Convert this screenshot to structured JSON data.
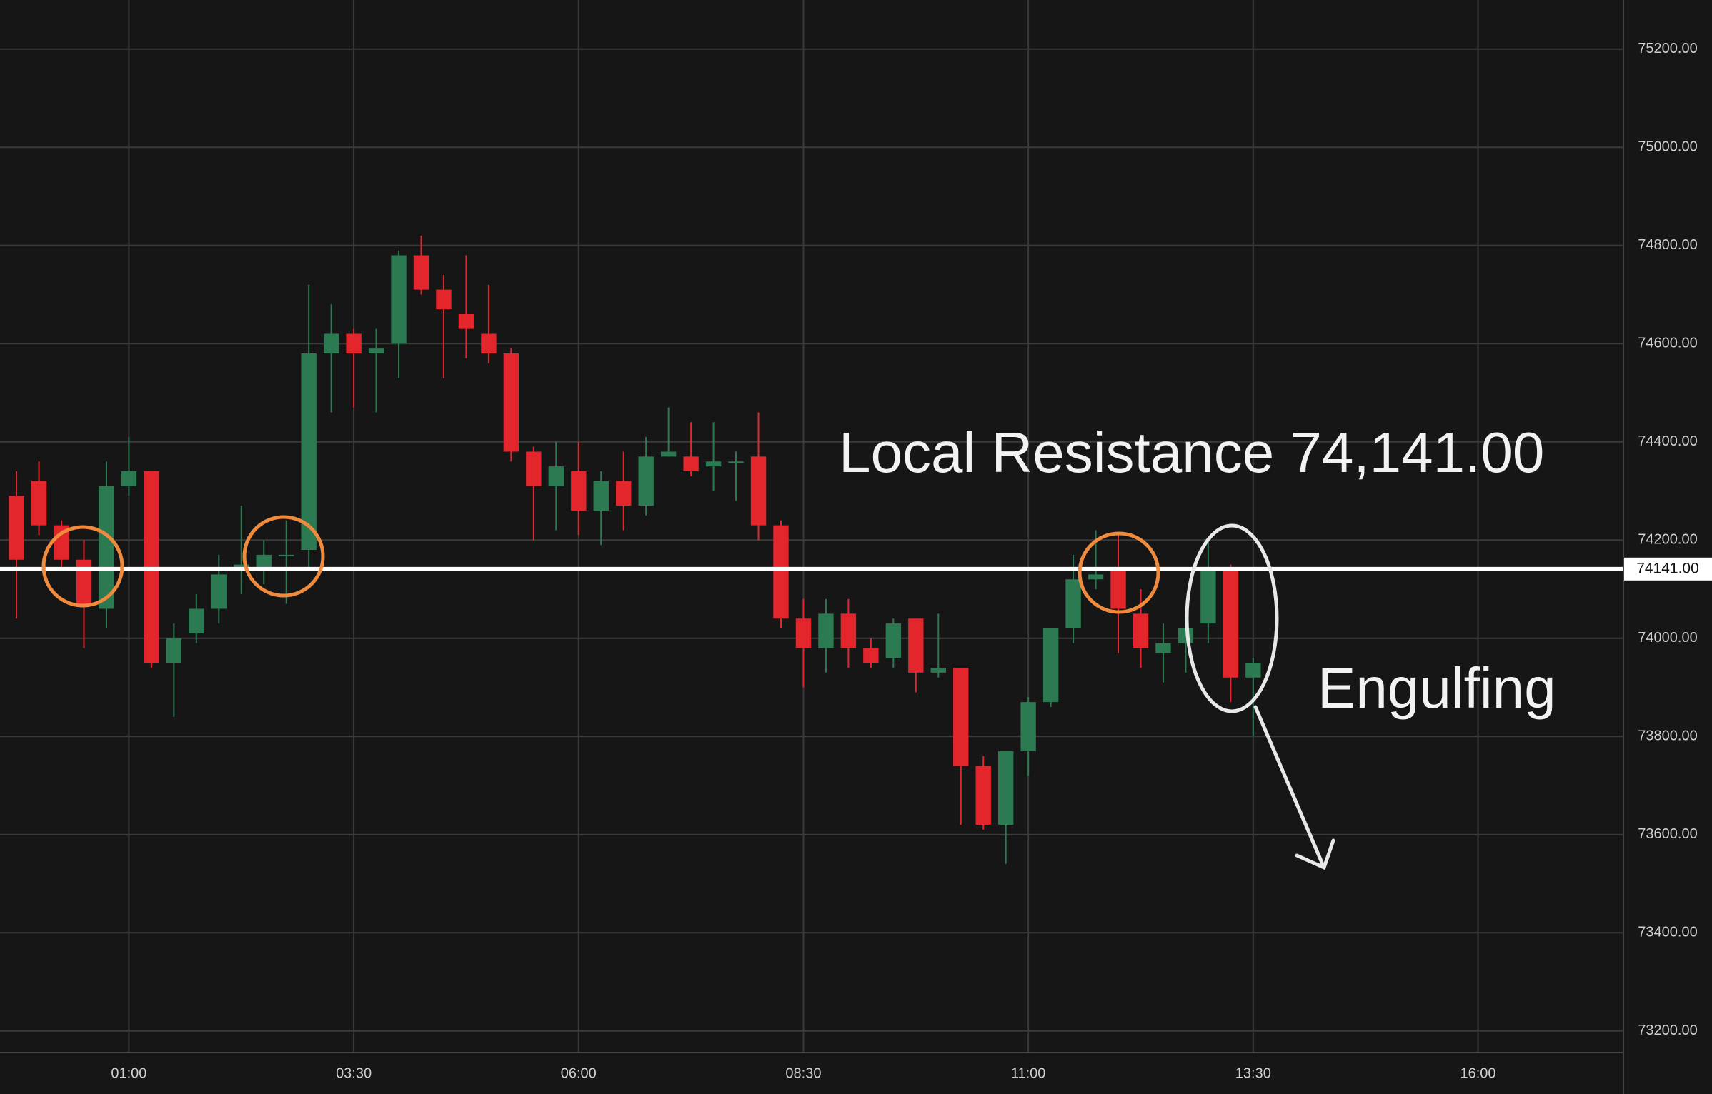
{
  "chart_data": {
    "type": "candlestick",
    "x": [
      "23:45",
      "00:00",
      "00:15",
      "00:30",
      "00:45",
      "01:00",
      "01:15",
      "01:30",
      "01:45",
      "02:00",
      "02:15",
      "02:30",
      "02:45",
      "03:00",
      "03:15",
      "03:30",
      "03:45",
      "04:00",
      "04:15",
      "04:30",
      "04:45",
      "05:00",
      "05:15",
      "05:30",
      "05:45",
      "06:00",
      "06:15",
      "06:30",
      "06:45",
      "07:00",
      "07:15",
      "07:30",
      "07:45",
      "08:00",
      "08:15",
      "08:30",
      "08:45",
      "09:00",
      "09:15",
      "09:30",
      "09:45",
      "10:00",
      "10:15",
      "10:30",
      "10:45",
      "11:00",
      "11:15",
      "11:30",
      "11:45",
      "12:00",
      "12:15",
      "12:30",
      "12:45",
      "13:00",
      "13:15",
      "13:30"
    ],
    "open": [
      74290,
      74320,
      74230,
      74160,
      74060,
      74310,
      74340,
      73950,
      74010,
      74060,
      74140,
      74140,
      74170,
      74180,
      74580,
      74620,
      74580,
      74600,
      74780,
      74710,
      74660,
      74620,
      74580,
      74380,
      74310,
      74340,
      74260,
      74320,
      74270,
      74370,
      74370,
      74350,
      74360,
      74370,
      74230,
      74040,
      73980,
      74050,
      73980,
      73960,
      74040,
      73930,
      73940,
      73740,
      73620,
      73770,
      73870,
      74020,
      74120,
      74140,
      74050,
      73970,
      73990,
      74030,
      74140,
      73920
    ],
    "high": [
      74340,
      74360,
      74240,
      74200,
      74360,
      74410,
      74340,
      74030,
      74090,
      74170,
      74270,
      74200,
      74240,
      74720,
      74680,
      74630,
      74630,
      74790,
      74820,
      74740,
      74780,
      74720,
      74590,
      74390,
      74400,
      74400,
      74340,
      74380,
      74410,
      74470,
      74440,
      74440,
      74380,
      74460,
      74240,
      74080,
      74080,
      74080,
      74000,
      74040,
      74040,
      74050,
      73940,
      73760,
      73770,
      73880,
      74020,
      74170,
      74220,
      74210,
      74100,
      74030,
      74040,
      74200,
      74150,
      73960
    ],
    "low": [
      74040,
      74210,
      74140,
      73980,
      74020,
      74290,
      73940,
      73840,
      73990,
      74030,
      74090,
      74110,
      74070,
      74140,
      74460,
      74470,
      74460,
      74530,
      74700,
      74530,
      74570,
      74560,
      74360,
      74200,
      74220,
      74210,
      74190,
      74220,
      74250,
      74370,
      74330,
      74300,
      74280,
      74200,
      74020,
      73900,
      73930,
      73940,
      73940,
      73940,
      73890,
      73920,
      73620,
      73610,
      73540,
      73720,
      73860,
      73990,
      74100,
      73970,
      73940,
      73910,
      73930,
      73990,
      73870,
      73800
    ],
    "close": [
      74160,
      74230,
      74160,
      74070,
      74310,
      74340,
      73950,
      74000,
      74060,
      74130,
      74150,
      74170,
      74170,
      74580,
      74620,
      74580,
      74590,
      74780,
      74710,
      74670,
      74630,
      74580,
      74380,
      74310,
      74350,
      74260,
      74320,
      74270,
      74370,
      74380,
      74340,
      74360,
      74360,
      74230,
      74040,
      73980,
      74050,
      73980,
      73950,
      74030,
      73930,
      73940,
      73740,
      73620,
      73770,
      73870,
      74020,
      74120,
      74130,
      74060,
      73980,
      73990,
      74020,
      74140,
      73920,
      73950
    ],
    "up_color": "#2b7a52",
    "down_color": "#e3262c",
    "xlim": [
      "23:34",
      "17:37"
    ],
    "xticks": [
      "01:00",
      "03:30",
      "06:00",
      "08:30",
      "11:00",
      "13:30",
      "16:00"
    ],
    "ylim": [
      73156,
      75300
    ],
    "yticks": [
      {
        "value": 73200,
        "label": "73200.00"
      },
      {
        "value": 73400,
        "label": "73400.00"
      },
      {
        "value": 73600,
        "label": "73600.00"
      },
      {
        "value": 73800,
        "label": "73800.00"
      },
      {
        "value": 74000,
        "label": "74000.00"
      },
      {
        "value": 74200,
        "label": "74200.00"
      },
      {
        "value": 74400,
        "label": "74400.00"
      },
      {
        "value": 74600,
        "label": "74600.00"
      },
      {
        "value": 74800,
        "label": "74800.00"
      },
      {
        "value": 75000,
        "label": "75000.00"
      },
      {
        "value": 75200,
        "label": "75200.00"
      }
    ],
    "grid": true,
    "lines": [
      {
        "value": 74141,
        "label": "74141.00"
      }
    ],
    "annotations": [
      "Local Resistance 74,141.00",
      "Engulfing"
    ]
  }
}
